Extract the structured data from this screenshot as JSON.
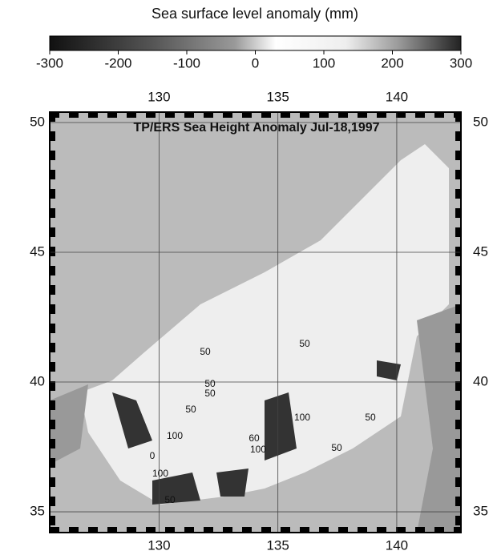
{
  "colorbar": {
    "title": "Sea surface level anomaly (mm)",
    "lim": [
      -300,
      300
    ],
    "ticks": [
      -300,
      -200,
      -100,
      0,
      100,
      200,
      300
    ]
  },
  "map": {
    "title": "TP/ERS Sea Height Anomaly Jul-18,1997",
    "lonlim": [
      125.4,
      142.7
    ],
    "latlim": [
      34.2,
      50.4
    ],
    "lon_ticks": [
      130,
      135,
      140
    ],
    "lat_ticks": [
      35,
      40,
      45,
      50
    ],
    "contour_labels": [
      "50",
      "50",
      "50",
      "50",
      "100",
      "50",
      "0",
      "100",
      "50",
      "60",
      "100",
      "100",
      "50",
      "50"
    ]
  }
}
